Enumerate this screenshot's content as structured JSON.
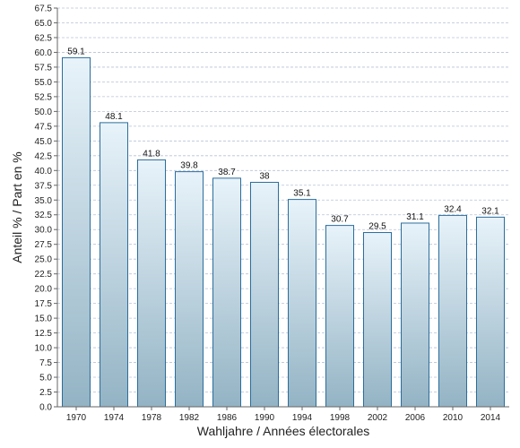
{
  "chart_data": {
    "type": "bar",
    "categories": [
      "1970",
      "1974",
      "1978",
      "1982",
      "1986",
      "1990",
      "1994",
      "1998",
      "2002",
      "2006",
      "2010",
      "2014"
    ],
    "values": [
      59.1,
      48.1,
      41.8,
      39.8,
      38.7,
      38,
      35.1,
      30.7,
      29.5,
      31.1,
      32.4,
      32.1
    ],
    "data_labels": [
      "59.1",
      "48.1",
      "41.8",
      "39.8",
      "38.7",
      "38",
      "35.1",
      "30.7",
      "29.5",
      "31.1",
      "32.4",
      "32.1"
    ],
    "xlabel": "Wahljahre / Années électorales",
    "ylabel": "Anteil % / Part en %",
    "ylim": [
      0,
      67.5
    ],
    "ytick_step": 2.5,
    "grid": true,
    "colors": {
      "bar_top": "#e8f3fa",
      "bar_bottom": "#93b3c4",
      "bar_stroke": "#2a6d9c",
      "grid": "#b7c2d6",
      "axis": "#666666"
    }
  }
}
